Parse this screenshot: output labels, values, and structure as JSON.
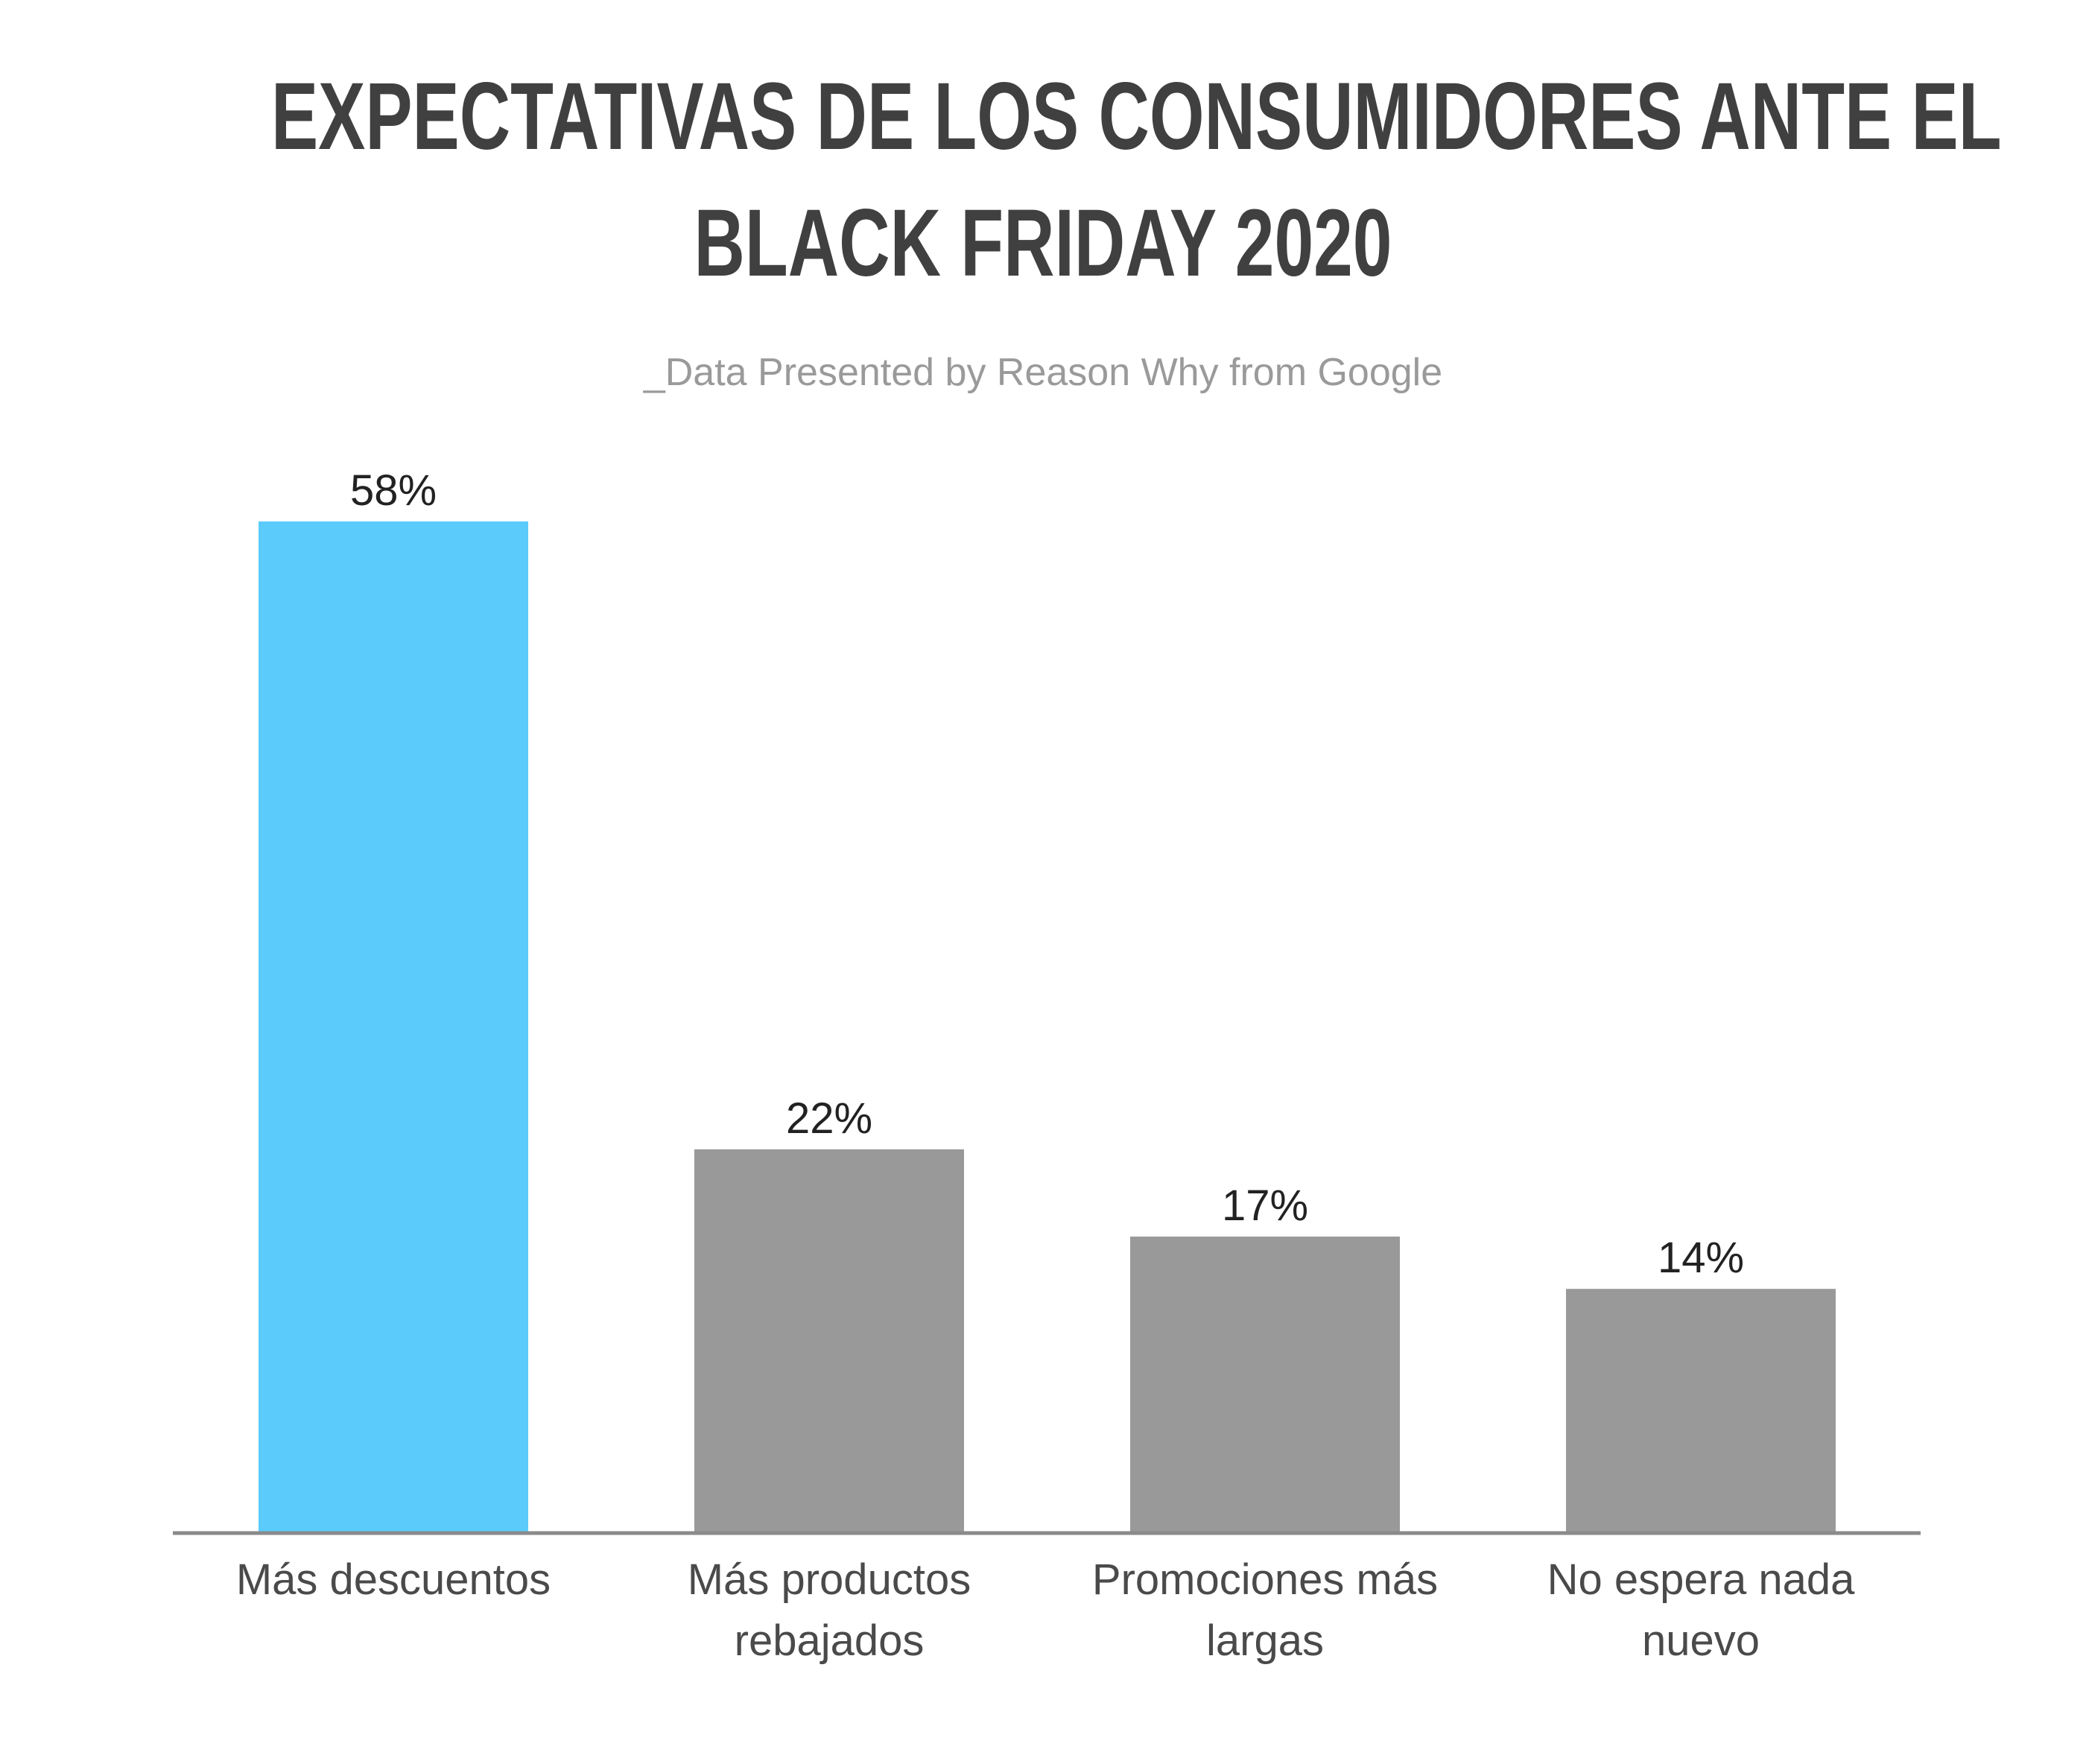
{
  "header": {
    "title_line1": "EXPECTATIVAS DE LOS CONSUMIDORES ANTE EL",
    "title_line2": "BLACK FRIDAY 2020",
    "subtitle": "_Data Presented by Reason Why from Google"
  },
  "colors": {
    "highlight_bar": "#5bcbfc",
    "default_bar": "#999999",
    "axis": "#8a8a8a"
  },
  "chart_data": {
    "type": "bar",
    "title": "EXPECTATIVAS DE LOS CONSUMIDORES ANTE EL BLACK FRIDAY 2020",
    "subtitle": "_Data Presented by Reason Why from Google",
    "categories": [
      [
        "Más descuentos"
      ],
      [
        "Más productos",
        "rebajados"
      ],
      [
        "Promociones más",
        "largas"
      ],
      [
        "No espera nada",
        "nuevo"
      ]
    ],
    "values": [
      58,
      22,
      17,
      14
    ],
    "value_labels": [
      "58%",
      "22%",
      "17%",
      "14%"
    ],
    "highlighted_index": 0,
    "ylim": [
      0,
      58
    ],
    "grid": false,
    "legend": "none",
    "xlabel": "",
    "ylabel": ""
  }
}
